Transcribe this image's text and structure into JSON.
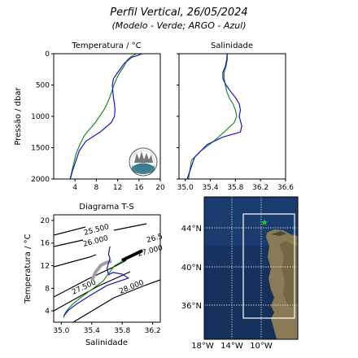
{
  "title": "Perfil Vertical, 26/05/2024",
  "subtitle": "(Modelo - Verde; ARGO - Azul)",
  "colors": {
    "model": "#228b22",
    "argo": "#1515c8",
    "ts_grey": "#a0a0a0",
    "ocean": "#1b3f7a",
    "land": "#8a7a55"
  },
  "chart_data": [
    {
      "type": "line",
      "title": "Temperatura / °C",
      "xlabel": "",
      "ylabel": "Pressão / dbar",
      "xlim": [
        0,
        20
      ],
      "ylim": [
        2000,
        0
      ],
      "xticks": [
        "4",
        "8",
        "12",
        "16",
        "20"
      ],
      "yticks": [
        "0",
        "500",
        "1000",
        "1500",
        "2000"
      ],
      "series": [
        {
          "color": "model",
          "x": [
            15.5,
            14.5,
            13.8,
            13.2,
            12.4,
            11.8,
            11.3,
            10.9,
            10.5,
            10.0,
            9.4,
            8.6,
            7.8,
            6.8,
            5.8,
            4.9,
            4.2,
            3.6,
            3.1
          ],
          "y": [
            0,
            50,
            100,
            200,
            300,
            400,
            500,
            600,
            700,
            800,
            900,
            1000,
            1100,
            1200,
            1300,
            1450,
            1600,
            1800,
            2000
          ]
        },
        {
          "color": "argo",
          "x": [
            16.6,
            15.7,
            14.6,
            13.3,
            12.0,
            11.2,
            11.0,
            11.1,
            11.2,
            11.4,
            11.5,
            11.4,
            10.8,
            8.7,
            6.0,
            4.8,
            4.2,
            3.6,
            3.1
          ],
          "y": [
            0,
            30,
            60,
            150,
            300,
            400,
            500,
            600,
            700,
            800,
            900,
            1000,
            1100,
            1250,
            1400,
            1550,
            1700,
            1850,
            2000
          ]
        }
      ]
    },
    {
      "type": "line",
      "title": "Salinidade",
      "xlabel": "",
      "xlim": [
        34.9,
        36.6
      ],
      "ylim": [
        2000,
        0
      ],
      "xticks": [
        "35.0",
        "35.4",
        "35.8",
        "36.2",
        "36.6"
      ],
      "series": [
        {
          "color": "model",
          "x": [
            35.67,
            35.67,
            35.65,
            35.62,
            35.62,
            35.64,
            35.66,
            35.7,
            35.76,
            35.8,
            35.82,
            35.78,
            35.62,
            35.45,
            35.25,
            35.1,
            35.05
          ],
          "y": [
            0,
            100,
            200,
            300,
            400,
            500,
            600,
            700,
            800,
            900,
            1000,
            1100,
            1250,
            1400,
            1550,
            1700,
            2000
          ]
        },
        {
          "color": "argo",
          "x": [
            35.67,
            35.66,
            35.64,
            35.6,
            35.6,
            35.65,
            35.72,
            35.8,
            35.86,
            35.88,
            35.86,
            35.9,
            35.88,
            35.6,
            35.35,
            35.15,
            35.03
          ],
          "y": [
            0,
            100,
            200,
            300,
            400,
            500,
            600,
            700,
            800,
            900,
            1000,
            1150,
            1250,
            1330,
            1450,
            1650,
            2000
          ]
        }
      ]
    },
    {
      "type": "line",
      "title": "Diagrama T-S",
      "xlabel": "Salinidade",
      "ylabel": "Temperatura / °C",
      "xlim": [
        34.9,
        36.3
      ],
      "ylim": [
        2,
        21
      ],
      "xticks": [
        "35.0",
        "35.4",
        "35.8",
        "36.2"
      ],
      "yticks": [
        "4",
        "8",
        "12",
        "16",
        "20"
      ],
      "contour_labels": [
        "25.500",
        "26.000",
        "26.5",
        "27.000",
        "27.500",
        "28.000"
      ],
      "series": [
        {
          "color": "model",
          "x": [
            35.03,
            35.05,
            35.1,
            35.15,
            35.25,
            35.35,
            35.45,
            35.55,
            35.62,
            35.67,
            35.7,
            35.78,
            35.8
          ],
          "y": [
            2.8,
            3.6,
            4.5,
            5.2,
            6.3,
            7.3,
            8.3,
            9.3,
            10.6,
            11.5,
            12.0,
            12.6,
            13.0
          ]
        },
        {
          "color": "argo",
          "x": [
            35.03,
            35.1,
            35.2,
            35.35,
            35.6,
            35.88,
            35.8,
            35.68,
            35.62,
            35.6,
            35.64,
            35.62,
            35.63,
            35.64
          ],
          "y": [
            3.1,
            4.2,
            5.2,
            6.5,
            8.5,
            9.8,
            10.5,
            10.8,
            10.4,
            11.5,
            13.3,
            14.0,
            14.8,
            15.4
          ]
        }
      ]
    }
  ],
  "map": {
    "lat_labels": [
      "44°N",
      "40°N",
      "36°N"
    ],
    "lon_labels": [
      "18°W",
      "14°W",
      "10°W"
    ]
  }
}
